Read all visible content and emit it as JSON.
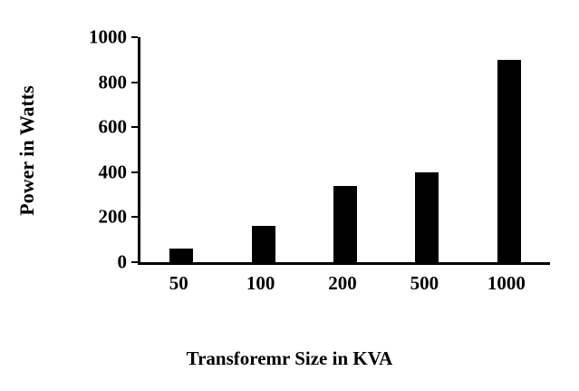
{
  "chart_data": {
    "type": "bar",
    "categories": [
      "50",
      "100",
      "200",
      "500",
      "1000"
    ],
    "values": [
      60,
      160,
      340,
      400,
      900
    ],
    "title": "",
    "xlabel": "Transforemr Size in KVA",
    "ylabel": "Power in Watts",
    "ylim": [
      0,
      1000
    ],
    "yticks": [
      0,
      200,
      400,
      600,
      800,
      1000
    ],
    "bar_color": "#000000",
    "grid": false,
    "legend": false
  }
}
